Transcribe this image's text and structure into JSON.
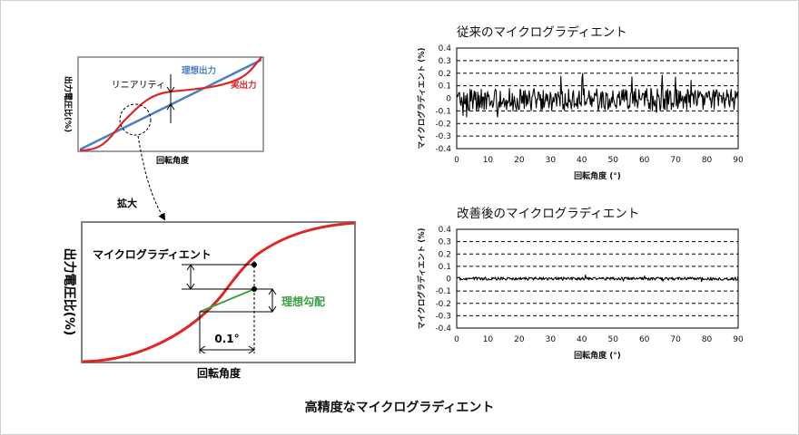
{
  "caption": "高精度なマイクログラディエント",
  "overview": {
    "ylabel": "出力電圧比(%)",
    "xlabel": "回転角度",
    "label_ideal": "理想出力",
    "label_actual": "実出力",
    "label_linearity": "リニアリティ"
  },
  "zoom_arrow_label": "拡大",
  "detail": {
    "ylabel": "出力電圧比(%)",
    "xlabel": "回転角度",
    "label_micro": "マイクログラディエント",
    "label_ideal_slope": "理想勾配",
    "label_step": "0.1°"
  },
  "colors": {
    "ideal": "#4a7fc4",
    "actual": "#e02525",
    "ideal_slope": "#3aa040"
  },
  "chart_data": [
    {
      "type": "line",
      "title": "従来のマイクログラディエント",
      "xlabel": "回転角度 (°)",
      "ylabel": "マイクログラディエント (%)",
      "xlim": [
        0,
        90
      ],
      "ylim": [
        -0.4,
        0.4
      ],
      "xticks": [
        "0",
        "10",
        "20",
        "30",
        "40",
        "50",
        "60",
        "70",
        "80",
        "90"
      ],
      "yticks": [
        "0.4",
        "0.3",
        "0.2",
        "0.1",
        "0",
        "-0.1",
        "-0.2",
        "-0.3",
        "-0.4"
      ],
      "grid": "dashed horizontal",
      "series": [
        {
          "band_max": 0.08,
          "band_min": -0.1,
          "peak_max": 0.2,
          "peak_min": -0.15
        }
      ]
    },
    {
      "type": "line",
      "title": "改善後のマイクログラディエント",
      "xlabel": "回転角度 (°)",
      "ylabel": "マイクログラディエント (%)",
      "xlim": [
        0,
        90
      ],
      "ylim": [
        -0.4,
        0.4
      ],
      "xticks": [
        "0",
        "10",
        "20",
        "30",
        "40",
        "50",
        "60",
        "70",
        "80",
        "90"
      ],
      "yticks": [
        "0.4",
        "0.3",
        "0.2",
        "0.1",
        "0",
        "-0.1",
        "-0.2",
        "-0.3",
        "-0.4"
      ],
      "grid": "dashed horizontal",
      "series": [
        {
          "band_max": 0.012,
          "band_min": -0.012,
          "peak_max": 0.03,
          "peak_min": -0.025
        }
      ]
    }
  ]
}
